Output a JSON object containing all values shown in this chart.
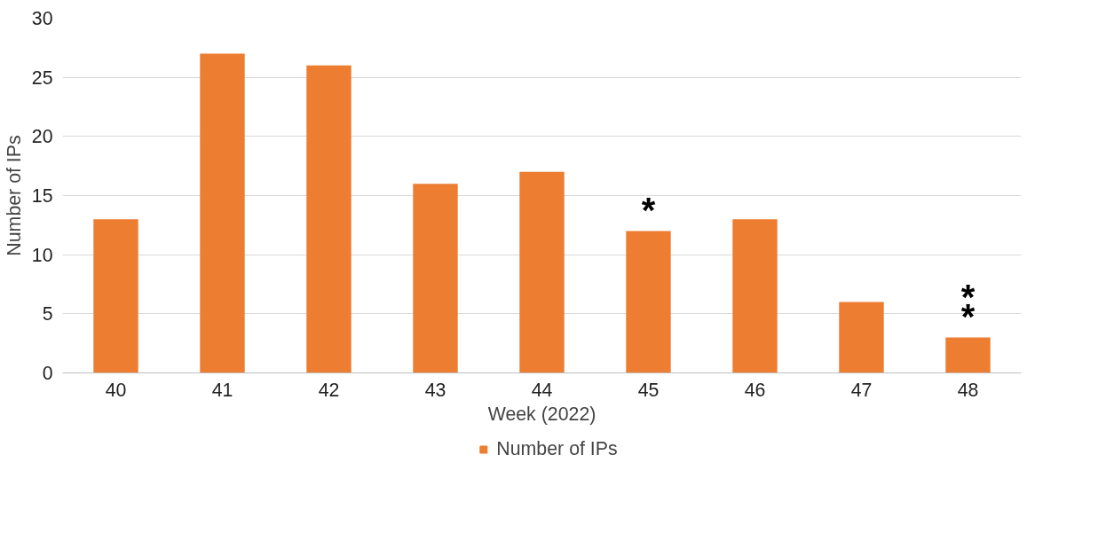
{
  "chart_data": {
    "type": "bar",
    "xlabel": "Week (2022)",
    "ylabel": "Number of IPs",
    "categories": [
      "40",
      "41",
      "42",
      "43",
      "44",
      "45",
      "46",
      "47",
      "48"
    ],
    "series": [
      {
        "name": "Number of IPs",
        "color": "#ed7d31",
        "values": [
          13,
          27,
          26,
          16,
          17,
          12,
          13,
          6,
          3
        ]
      }
    ],
    "ylim": [
      0,
      30
    ],
    "yticks": [
      0,
      5,
      10,
      15,
      20,
      25,
      30
    ],
    "grid": "y",
    "legend": "bottom",
    "annotations": [
      {
        "text": "*",
        "x": "45",
        "y": 12
      },
      {
        "text": "**",
        "x": "48",
        "y": 3
      }
    ]
  }
}
